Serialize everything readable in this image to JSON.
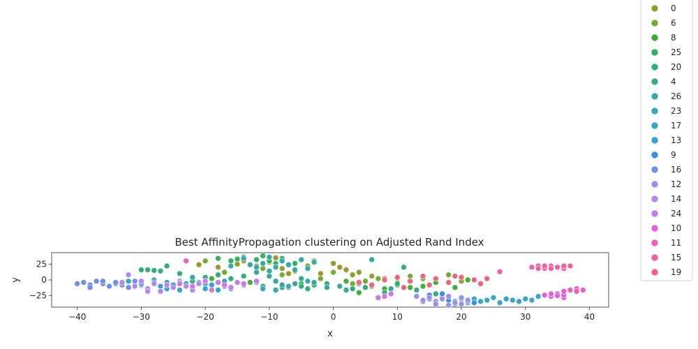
{
  "chart_data": {
    "type": "scatter",
    "title": "Best AffinityPropagation clustering on Adjusted Rand Index",
    "xlabel": "x",
    "ylabel": "y",
    "xlim": [
      -44,
      43
    ],
    "ylim": [
      -43,
      43
    ],
    "xticks": [
      -40,
      -30,
      -20,
      -10,
      0,
      10,
      20,
      30,
      40
    ],
    "yticks": [
      -25,
      0,
      25
    ],
    "legend_position": "right, outside plot",
    "series": [
      {
        "name": "0",
        "color": "#9b9a2f",
        "points": [
          [
            -21,
            24
          ],
          [
            -18,
            20
          ],
          [
            -15,
            25
          ],
          [
            -12,
            22
          ],
          [
            -10,
            28
          ],
          [
            -8,
            18
          ],
          [
            -6,
            14
          ],
          [
            -4,
            22
          ],
          [
            -2,
            10
          ],
          [
            0,
            26
          ],
          [
            2,
            16
          ],
          [
            4,
            12
          ],
          [
            6,
            6
          ],
          [
            8,
            2
          ],
          [
            -14,
            30
          ],
          [
            -9,
            35
          ],
          [
            -3,
            30
          ],
          [
            1,
            20
          ],
          [
            3,
            8
          ],
          [
            -7,
            10
          ]
        ]
      },
      {
        "name": "6",
        "color": "#72ad31",
        "points": [
          [
            -20,
            30
          ],
          [
            -17,
            12
          ],
          [
            -11,
            18
          ],
          [
            -6,
            26
          ],
          [
            -2,
            2
          ],
          [
            3,
            -6
          ],
          [
            7,
            2
          ],
          [
            10,
            -4
          ],
          [
            14,
            2
          ],
          [
            18,
            8
          ],
          [
            20,
            -2
          ],
          [
            -8,
            8
          ],
          [
            0,
            12
          ],
          [
            5,
            -2
          ],
          [
            12,
            6
          ]
        ]
      },
      {
        "name": "8",
        "color": "#3fb036",
        "points": [
          [
            -19,
            2
          ],
          [
            -13,
            -4
          ],
          [
            -5,
            -6
          ],
          [
            2,
            -2
          ],
          [
            6,
            -10
          ],
          [
            10,
            -8
          ],
          [
            14,
            -10
          ],
          [
            16,
            -4
          ],
          [
            19,
            -12
          ],
          [
            21,
            0
          ],
          [
            4,
            -20
          ],
          [
            8,
            -14
          ],
          [
            12,
            -12
          ]
        ]
      },
      {
        "name": "25",
        "color": "#33b060",
        "points": [
          [
            -18,
            34
          ],
          [
            -16,
            30
          ],
          [
            -14,
            36
          ],
          [
            -12,
            32
          ],
          [
            -10,
            30
          ],
          [
            -8,
            34
          ],
          [
            -6,
            26
          ],
          [
            -11,
            38
          ],
          [
            -9,
            26
          ],
          [
            -15,
            33
          ]
        ]
      },
      {
        "name": "20",
        "color": "#33ad7f",
        "points": [
          [
            -30,
            16
          ],
          [
            -29,
            16
          ],
          [
            -28,
            15
          ],
          [
            -27,
            14
          ],
          [
            -26,
            22
          ],
          [
            -24,
            10
          ],
          [
            -22,
            -2
          ],
          [
            -20,
            4
          ],
          [
            -18,
            8
          ],
          [
            -16,
            2
          ],
          [
            -14,
            6
          ],
          [
            -12,
            -4
          ],
          [
            -8,
            -12
          ],
          [
            -5,
            -10
          ],
          [
            -3,
            -8
          ],
          [
            -1,
            -6
          ],
          [
            3,
            -14
          ],
          [
            5,
            -12
          ],
          [
            8,
            -20
          ],
          [
            10,
            -6
          ],
          [
            13,
            -16
          ],
          [
            16,
            -22
          ],
          [
            11,
            20
          ]
        ]
      },
      {
        "name": "4",
        "color": "#33aa95",
        "points": [
          [
            -12,
            12
          ],
          [
            -10,
            6
          ],
          [
            -9,
            -2
          ],
          [
            -8,
            -8
          ],
          [
            -7,
            -12
          ],
          [
            -6,
            -6
          ],
          [
            -4,
            -14
          ],
          [
            -3,
            -4
          ],
          [
            -1,
            -12
          ],
          [
            1,
            -10
          ],
          [
            2,
            -16
          ],
          [
            4,
            -6
          ],
          [
            -5,
            2
          ],
          [
            -11,
            -10
          ],
          [
            9,
            -14
          ]
        ]
      },
      {
        "name": "26",
        "color": "#35aaaa",
        "points": [
          [
            -13,
            24
          ],
          [
            -12,
            20
          ],
          [
            -11,
            26
          ],
          [
            -10,
            14
          ],
          [
            -9,
            20
          ],
          [
            -8,
            30
          ],
          [
            -7,
            24
          ],
          [
            -6,
            16
          ],
          [
            -5,
            32
          ],
          [
            -4,
            18
          ],
          [
            -16,
            22
          ],
          [
            -14,
            34
          ],
          [
            -3,
            28
          ],
          [
            6,
            32
          ],
          [
            -10,
            36
          ]
        ]
      },
      {
        "name": "23",
        "color": "#37a8b8",
        "points": [
          [
            -34,
            -6
          ],
          [
            -32,
            -2
          ],
          [
            -30,
            -8
          ],
          [
            -28,
            0
          ],
          [
            -26,
            -4
          ],
          [
            -24,
            -2
          ],
          [
            -22,
            4
          ],
          [
            -20,
            -6
          ],
          [
            -17,
            -2
          ],
          [
            -14,
            -8
          ],
          [
            -11,
            -14
          ],
          [
            -9,
            -16
          ],
          [
            -7,
            -10
          ],
          [
            -4,
            -2
          ]
        ]
      },
      {
        "name": "17",
        "color": "#39a6c8",
        "points": [
          [
            22,
            -30
          ],
          [
            23,
            -34
          ],
          [
            24,
            -32
          ],
          [
            25,
            -28
          ],
          [
            26,
            -36
          ],
          [
            27,
            -30
          ],
          [
            28,
            -32
          ],
          [
            29,
            -34
          ],
          [
            30,
            -30
          ],
          [
            31,
            -32
          ],
          [
            20,
            -28
          ],
          [
            21,
            -36
          ],
          [
            32,
            -26
          ],
          [
            33,
            -24
          ],
          [
            19,
            -34
          ]
        ]
      },
      {
        "name": "13",
        "color": "#3b9fd8",
        "points": [
          [
            -27,
            -10
          ],
          [
            -26,
            -14
          ],
          [
            -25,
            -8
          ],
          [
            -24,
            -16
          ],
          [
            -23,
            -6
          ],
          [
            -22,
            -12
          ],
          [
            -21,
            -4
          ],
          [
            -20,
            -14
          ],
          [
            -19,
            -8
          ],
          [
            -18,
            -16
          ],
          [
            -17,
            -10
          ],
          [
            -28,
            -4
          ],
          [
            -16,
            -14
          ]
        ]
      },
      {
        "name": "9",
        "color": "#3d8ee5",
        "points": [
          [
            14,
            -34
          ],
          [
            15,
            -30
          ],
          [
            16,
            -36
          ],
          [
            17,
            -28
          ],
          [
            18,
            -32
          ],
          [
            19,
            -38
          ],
          [
            20,
            -30
          ],
          [
            21,
            -34
          ],
          [
            15,
            -24
          ],
          [
            17,
            -22
          ],
          [
            22,
            -36
          ]
        ]
      },
      {
        "name": "16",
        "color": "#6f8ded",
        "points": [
          [
            -40,
            -6
          ],
          [
            -39,
            -4
          ],
          [
            -38,
            -8
          ],
          [
            -37,
            -2
          ],
          [
            -36,
            -6
          ],
          [
            -35,
            -10
          ],
          [
            -34,
            -4
          ],
          [
            -33,
            -8
          ],
          [
            -32,
            -12
          ],
          [
            -31,
            -2
          ],
          [
            -30,
            -6
          ],
          [
            -36,
            -2
          ],
          [
            -38,
            -12
          ]
        ]
      },
      {
        "name": "12",
        "color": "#9990eb",
        "points": [
          [
            13,
            -26
          ],
          [
            14,
            -32
          ],
          [
            15,
            -28
          ],
          [
            16,
            -34
          ],
          [
            17,
            -30
          ],
          [
            18,
            -26
          ],
          [
            19,
            -36
          ],
          [
            20,
            -28
          ],
          [
            21,
            -32
          ],
          [
            16,
            -38
          ],
          [
            18,
            -40
          ],
          [
            20,
            -38
          ]
        ]
      },
      {
        "name": "14",
        "color": "#b487ea",
        "points": [
          [
            -33,
            -4
          ],
          [
            -32,
            8
          ],
          [
            -31,
            -10
          ],
          [
            -30,
            -2
          ],
          [
            -29,
            -14
          ],
          [
            -28,
            -6
          ],
          [
            -27,
            -18
          ],
          [
            -26,
            -8
          ],
          [
            -25,
            -12
          ],
          [
            -24,
            -4
          ],
          [
            -23,
            -10
          ],
          [
            -22,
            -16
          ],
          [
            -21,
            -6
          ],
          [
            -29,
            -18
          ]
        ]
      },
      {
        "name": "24",
        "color": "#ca79e6",
        "points": [
          [
            -24,
            -6
          ],
          [
            -22,
            -10
          ],
          [
            -20,
            -2
          ],
          [
            -19,
            -16
          ],
          [
            -18,
            -4
          ],
          [
            -17,
            -8
          ],
          [
            -16,
            -12
          ],
          [
            -15,
            -4
          ],
          [
            -14,
            -6
          ],
          [
            -12,
            -2
          ],
          [
            8,
            -26
          ],
          [
            9,
            -22
          ],
          [
            7,
            -28
          ]
        ]
      },
      {
        "name": "10",
        "color": "#e161dc",
        "points": [
          [
            33,
            -24
          ],
          [
            34,
            -26
          ],
          [
            35,
            -22
          ],
          [
            36,
            -28
          ],
          [
            35,
            -25
          ],
          [
            34,
            -22
          ],
          [
            36,
            -24
          ]
        ]
      },
      {
        "name": "11",
        "color": "#ea5fc0",
        "points": [
          [
            -23,
            30
          ],
          [
            37,
            -16
          ],
          [
            38,
            -14
          ],
          [
            39,
            -16
          ],
          [
            36,
            -18
          ],
          [
            38,
            -18
          ]
        ]
      },
      {
        "name": "15",
        "color": "#ef62a0",
        "points": [
          [
            31,
            20
          ],
          [
            32,
            22
          ],
          [
            33,
            18
          ],
          [
            34,
            22
          ],
          [
            35,
            20
          ],
          [
            36,
            18
          ],
          [
            37,
            22
          ],
          [
            32,
            18
          ],
          [
            34,
            18
          ],
          [
            36,
            22
          ],
          [
            26,
            13
          ],
          [
            33,
            22
          ]
        ]
      },
      {
        "name": "19",
        "color": "#f0657d",
        "points": [
          [
            4,
            -4
          ],
          [
            6,
            -8
          ],
          [
            8,
            0
          ],
          [
            10,
            4
          ],
          [
            12,
            -2
          ],
          [
            14,
            6
          ],
          [
            16,
            2
          ],
          [
            18,
            -4
          ],
          [
            20,
            4
          ],
          [
            22,
            0
          ],
          [
            23,
            -6
          ],
          [
            24,
            2
          ],
          [
            11,
            -12
          ],
          [
            15,
            -8
          ],
          [
            19,
            6
          ]
        ]
      }
    ]
  }
}
